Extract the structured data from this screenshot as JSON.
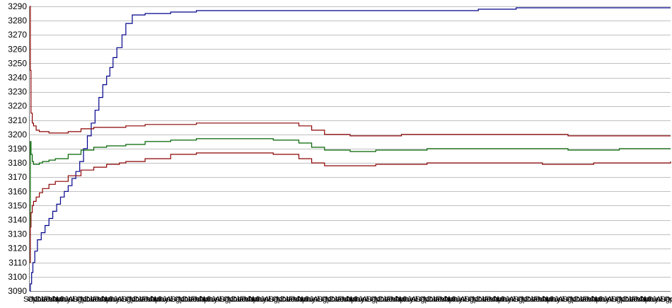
{
  "chart_data": {
    "type": "line",
    "title": "",
    "xlabel": "",
    "ylabel": "",
    "ylim": [
      3090,
      3290
    ],
    "yticks": [
      3090,
      3100,
      3110,
      3120,
      3130,
      3140,
      3150,
      3160,
      3170,
      3180,
      3190,
      3200,
      3210,
      3220,
      3230,
      3240,
      3250,
      3260,
      3270,
      3280,
      3290
    ],
    "grid": "horizontal",
    "legend": "none",
    "x_tick_labels": [
      "Sep",
      "Oct",
      "Nov",
      "Dec",
      "Jan",
      "Feb",
      "Mar",
      "Apr",
      "May",
      "Jun",
      "Jul",
      "Aug",
      "Sep",
      "Oct",
      "Nov",
      "Dec",
      "Jan",
      "Feb",
      "Mar",
      "Apr",
      "May",
      "Jun",
      "Jul",
      "Aug",
      "Sep",
      "Oct",
      "Nov",
      "Dec",
      "Jan",
      "Feb",
      "Mar",
      "Apr",
      "May",
      "Jun",
      "Jul",
      "Aug",
      "Sep",
      "Oct",
      "Nov",
      "Dec",
      "Jan",
      "Feb",
      "Mar",
      "Apr",
      "May",
      "Jun",
      "Jul",
      "Aug",
      "Sep",
      "Oct",
      "Nov",
      "Dec",
      "Jan",
      "Feb",
      "Mar",
      "Apr",
      "May",
      "Jun",
      "Jul",
      "Aug",
      "Sep",
      "Oct",
      "Nov",
      "Dec",
      "Jan",
      "Feb",
      "Mar",
      "Apr",
      "May",
      "Jun",
      "Jul",
      "Aug",
      "Sep",
      "Oct",
      "Nov",
      "Dec",
      "Jan",
      "Feb",
      "Mar",
      "Apr",
      "May",
      "Jun",
      "Jul",
      "Aug",
      "Sep",
      "Oct",
      "Nov",
      "Dec",
      "Jan",
      "Feb",
      "Mar",
      "Apr",
      "May",
      "Jun",
      "Jul",
      "Aug",
      "Sep",
      "Oct",
      "Nov",
      "Dec",
      "Jan",
      "Feb",
      "Mar",
      "Apr",
      "May",
      "Jun",
      "Jul",
      "Aug",
      "Sep",
      "Oct",
      "Nov",
      "Dec",
      "Jan",
      "Feb",
      "Mar",
      "Apr",
      "May",
      "Jun",
      "Jul",
      "Aug",
      "Sep",
      "Oct",
      "Nov",
      "Dec",
      "Jan",
      "Feb",
      "Mar",
      "Apr",
      "May",
      "Jun",
      "Jul",
      "Aug",
      "Sep",
      "Oct",
      "Nov",
      "Dec",
      "Jan",
      "Feb",
      "Mar",
      "Apr",
      "May",
      "Jun",
      "Jul",
      "Aug",
      "Sep",
      "Oct",
      "Nov",
      "Dec",
      "Jan",
      "Feb",
      "Mar",
      "Apr",
      "May",
      "Jun",
      "Jul",
      "Aug",
      "Sep",
      "Oct"
    ],
    "series": [
      {
        "color": "#00008b",
        "x": [
          0,
          1,
          3,
          5,
          8,
          12,
          18,
          24,
          30,
          36,
          42,
          48,
          54,
          60,
          66,
          72,
          78,
          84,
          90,
          96,
          102,
          108,
          114,
          120,
          125,
          130,
          136,
          144,
          150,
          160,
          180,
          220,
          260,
          300,
          400,
          500,
          600,
          700,
          759,
          1000
        ],
        "values": [
          3090,
          3095,
          3103,
          3110,
          3118,
          3126,
          3131,
          3136,
          3141,
          3146,
          3151,
          3156,
          3160,
          3164,
          3169,
          3174,
          3181,
          3190,
          3199,
          3208,
          3217,
          3226,
          3235,
          3241,
          3247,
          3254,
          3261,
          3270,
          3278,
          3284,
          3285,
          3286,
          3287,
          3287,
          3287,
          3287,
          3287,
          3288,
          3289,
          3289
        ]
      },
      {
        "color": "#8b0000",
        "x": [
          0,
          1,
          2,
          4,
          6,
          10,
          15,
          20,
          30,
          40,
          60,
          80,
          100,
          120,
          140,
          150,
          180,
          220,
          260,
          300,
          340,
          380,
          420,
          440,
          460,
          500,
          540,
          580,
          620,
          700,
          760,
          800,
          840,
          880,
          920,
          1000
        ],
        "values": [
          3290,
          3245,
          3215,
          3208,
          3206,
          3203,
          3202,
          3202,
          3201,
          3201,
          3202,
          3204,
          3205,
          3205,
          3205,
          3206,
          3207,
          3207,
          3208,
          3208,
          3208,
          3208,
          3206,
          3203,
          3200,
          3199,
          3199,
          3200,
          3200,
          3200,
          3200,
          3200,
          3199,
          3199,
          3199,
          3199
        ]
      },
      {
        "color": "#006400",
        "x": [
          0,
          1,
          2,
          4,
          6,
          10,
          15,
          20,
          30,
          40,
          60,
          80,
          100,
          120,
          140,
          150,
          180,
          220,
          260,
          300,
          340,
          380,
          420,
          440,
          460,
          500,
          540,
          580,
          620,
          700,
          760,
          800,
          840,
          880,
          920,
          1000
        ],
        "values": [
          3110,
          3195,
          3186,
          3181,
          3179,
          3179,
          3180,
          3181,
          3182,
          3183,
          3186,
          3189,
          3191,
          3192,
          3192,
          3193,
          3195,
          3196,
          3197,
          3197,
          3197,
          3196,
          3194,
          3191,
          3189,
          3188,
          3189,
          3189,
          3190,
          3190,
          3190,
          3190,
          3189,
          3189,
          3190,
          3190
        ]
      },
      {
        "color": "#8b0000",
        "x": [
          0,
          1,
          2,
          4,
          6,
          10,
          15,
          20,
          30,
          40,
          60,
          80,
          100,
          120,
          140,
          150,
          180,
          220,
          260,
          300,
          340,
          380,
          420,
          440,
          460,
          500,
          540,
          580,
          620,
          700,
          760,
          800,
          840,
          880,
          920,
          1000
        ],
        "values": [
          3110,
          3135,
          3145,
          3150,
          3153,
          3156,
          3159,
          3162,
          3165,
          3167,
          3171,
          3175,
          3177,
          3179,
          3180,
          3181,
          3183,
          3186,
          3187,
          3187,
          3187,
          3186,
          3183,
          3180,
          3178,
          3178,
          3179,
          3179,
          3180,
          3180,
          3180,
          3179,
          3179,
          3180,
          3180,
          3181
        ]
      }
    ]
  }
}
